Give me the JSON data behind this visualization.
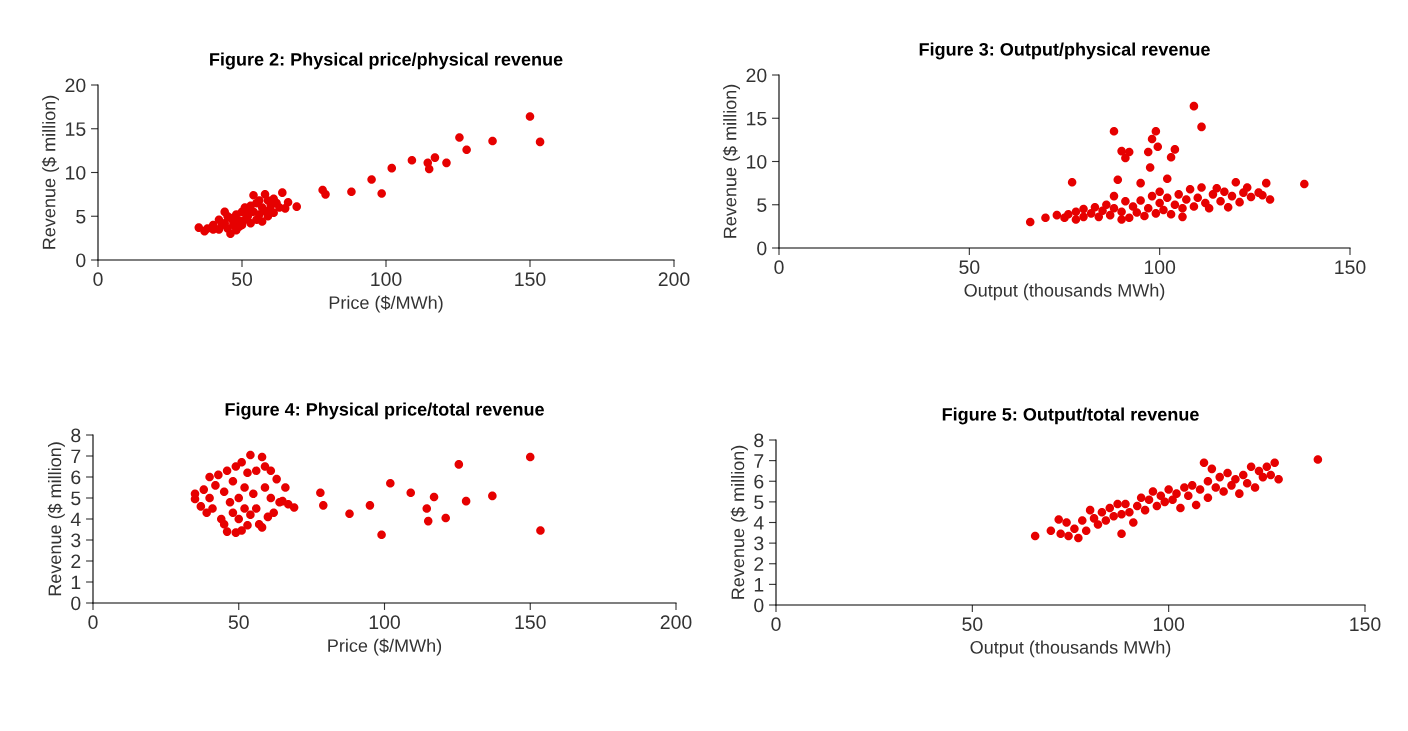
{
  "chart_data": [
    {
      "type": "scatter",
      "title": "Figure 2: Physical price/physical revenue",
      "xlabel": "Price ($/MWh)",
      "ylabel": "Revenue ($ million)",
      "xlim": [
        0,
        200
      ],
      "xticks": [
        0,
        50,
        100,
        150,
        200
      ],
      "ylim": [
        0,
        20
      ],
      "yticks": [
        0,
        5,
        10,
        15,
        20
      ],
      "grid": false,
      "marker": "circle",
      "series": [
        {
          "color": "#e60000",
          "x": [
            35,
            37,
            38,
            40,
            40,
            42,
            42,
            44,
            44,
            45,
            46,
            46,
            47,
            48,
            48,
            49,
            50,
            50,
            51,
            51,
            52,
            53,
            53,
            54,
            54,
            55,
            55,
            56,
            57,
            57,
            58,
            58,
            59,
            59,
            60,
            61,
            61,
            62,
            63,
            64,
            65,
            66,
            69,
            43,
            47,
            49,
            52,
            56,
            60,
            45,
            78,
            79,
            88,
            95,
            98.5,
            102,
            109,
            114.5,
            115,
            117,
            121,
            125.5,
            128,
            137,
            150,
            153.5
          ],
          "values": [
            3.7,
            3.3,
            3.6,
            4.0,
            3.5,
            4.6,
            3.5,
            4.2,
            5.5,
            3.6,
            4.8,
            3.0,
            4.0,
            5.2,
            3.4,
            4.5,
            5.5,
            4.0,
            6.0,
            4.6,
            5.0,
            6.2,
            4.2,
            7.4,
            5.5,
            4.6,
            6.5,
            5.2,
            6.0,
            4.4,
            7.5,
            5.6,
            6.8,
            5.0,
            6.2,
            7.0,
            5.4,
            6.5,
            6.0,
            7.7,
            5.9,
            6.6,
            6.1,
            4.0,
            4.4,
            3.8,
            5.8,
            6.8,
            5.6,
            5.0,
            8.0,
            7.5,
            7.8,
            9.2,
            7.6,
            10.5,
            11.4,
            11.1,
            10.4,
            11.7,
            11.1,
            14.0,
            12.6,
            13.6,
            16.4,
            13.5
          ]
        }
      ]
    },
    {
      "type": "scatter",
      "title": "Figure 3: Output/physical revenue",
      "xlabel": "Output (thousands MWh)",
      "ylabel": "Revenue ($ million)",
      "xlim": [
        0,
        150
      ],
      "xticks": [
        0,
        50,
        100,
        150
      ],
      "ylim": [
        0,
        20
      ],
      "yticks": [
        0,
        5,
        10,
        15,
        20
      ],
      "grid": false,
      "marker": "circle",
      "series": [
        {
          "color": "#e60000",
          "x": [
            66,
            70,
            73,
            75,
            76,
            78,
            78,
            80,
            80,
            82,
            83,
            84,
            85,
            86,
            87,
            88,
            88,
            90,
            90,
            91,
            92,
            93,
            94,
            95,
            96,
            97,
            98,
            99,
            100,
            100,
            101,
            102,
            103,
            104,
            105,
            106,
            106,
            107,
            108,
            109,
            110,
            111,
            112,
            113,
            114,
            115,
            116,
            117,
            118,
            119,
            120,
            121,
            122,
            123,
            124,
            126,
            127,
            129,
            77,
            88,
            89,
            90,
            91,
            92,
            95,
            97,
            97.5,
            98,
            99,
            99.5,
            102,
            103,
            104,
            109,
            111,
            128,
            138
          ],
          "values": [
            3.0,
            3.5,
            3.8,
            3.5,
            3.9,
            3.3,
            4.2,
            3.6,
            4.5,
            4.0,
            4.7,
            3.6,
            4.3,
            5.0,
            3.8,
            4.6,
            6.0,
            3.3,
            4.2,
            5.4,
            3.5,
            4.8,
            4.1,
            5.5,
            3.7,
            4.6,
            6.0,
            4.0,
            5.2,
            6.5,
            4.4,
            5.8,
            3.9,
            5.0,
            6.2,
            4.6,
            3.6,
            5.6,
            6.8,
            4.8,
            5.8,
            7.0,
            5.2,
            4.6,
            6.2,
            6.9,
            5.4,
            6.5,
            4.7,
            6.0,
            7.6,
            5.3,
            6.4,
            7.0,
            5.9,
            6.4,
            6.1,
            5.6,
            7.6,
            13.5,
            7.9,
            11.2,
            10.4,
            11.1,
            7.5,
            11.1,
            9.3,
            12.6,
            13.5,
            11.7,
            8.0,
            10.5,
            11.4,
            16.4,
            14.0,
            7.5,
            7.4
          ]
        }
      ]
    },
    {
      "type": "scatter",
      "title": "Figure 4: Physical price/total revenue",
      "xlabel": "Price ($/MWh)",
      "ylabel": "Revenue ($ million)",
      "xlim": [
        0,
        200
      ],
      "xticks": [
        0,
        50,
        100,
        150,
        200
      ],
      "ylim": [
        0,
        8
      ],
      "yticks": [
        0,
        1,
        2,
        3,
        4,
        5,
        6,
        7,
        8
      ],
      "grid": false,
      "marker": "circle",
      "series": [
        {
          "color": "#e60000",
          "x": [
            35,
            35,
            37,
            38,
            39,
            40,
            40,
            41,
            42,
            43,
            44,
            45,
            45,
            46,
            46,
            47,
            48,
            48,
            49,
            49,
            50,
            50,
            51,
            51,
            52,
            52,
            53,
            53,
            54,
            54,
            55,
            56,
            56,
            57,
            58,
            58,
            59,
            59,
            60,
            61,
            61,
            62,
            63,
            64,
            65,
            66,
            67,
            69,
            78,
            79,
            88,
            95,
            99,
            102,
            109,
            114.5,
            115,
            117,
            121,
            125.5,
            128,
            137,
            150,
            153.5
          ],
          "values": [
            5.2,
            4.95,
            4.6,
            5.4,
            4.3,
            6.0,
            5.0,
            4.5,
            5.6,
            6.1,
            4.0,
            3.75,
            5.3,
            3.4,
            6.3,
            4.8,
            5.8,
            4.3,
            3.35,
            6.5,
            5.0,
            4.0,
            6.7,
            3.45,
            5.5,
            4.5,
            6.2,
            3.7,
            7.05,
            4.2,
            5.2,
            6.3,
            4.5,
            3.75,
            6.95,
            3.6,
            6.5,
            5.5,
            4.1,
            6.3,
            5.0,
            4.3,
            5.9,
            4.8,
            4.85,
            5.5,
            4.7,
            4.55,
            5.25,
            4.65,
            4.25,
            4.65,
            3.25,
            5.7,
            5.25,
            4.5,
            3.9,
            5.05,
            4.05,
            6.6,
            4.85,
            5.1,
            6.95,
            3.45
          ]
        }
      ]
    },
    {
      "type": "scatter",
      "title": "Figure 5: Output/total revenue",
      "xlabel": "Output (thousands MWh)",
      "ylabel": "Revenue ($ million)",
      "xlim": [
        0,
        150
      ],
      "xticks": [
        0,
        50,
        100,
        150
      ],
      "ylim": [
        0,
        8
      ],
      "yticks": [
        0,
        1,
        2,
        3,
        4,
        5,
        6,
        7,
        8
      ],
      "grid": false,
      "marker": "circle",
      "series": [
        {
          "color": "#e60000",
          "x": [
            66,
            70,
            72,
            72.5,
            74,
            74.5,
            76,
            77,
            78,
            79,
            80,
            81,
            82,
            83,
            84,
            85,
            86,
            87,
            88,
            88,
            89,
            90,
            91,
            92,
            93,
            94,
            95,
            96,
            97,
            98,
            99,
            100,
            101,
            102,
            103,
            104,
            105,
            106,
            107,
            108,
            109,
            110,
            110,
            111,
            112,
            113,
            114,
            115,
            116,
            117,
            118,
            119,
            120,
            121,
            122,
            123,
            124,
            125,
            126,
            127,
            128,
            138
          ],
          "values": [
            3.35,
            3.6,
            4.15,
            3.45,
            4.0,
            3.35,
            3.7,
            3.25,
            4.1,
            3.6,
            4.6,
            4.2,
            3.9,
            4.5,
            4.1,
            4.7,
            4.3,
            4.9,
            3.45,
            4.4,
            4.9,
            4.5,
            4.0,
            4.8,
            5.2,
            4.6,
            5.1,
            5.5,
            4.8,
            5.3,
            5.0,
            5.6,
            5.1,
            5.4,
            4.7,
            5.7,
            5.3,
            5.8,
            4.85,
            5.6,
            6.9,
            5.2,
            6.0,
            6.6,
            5.7,
            6.2,
            5.5,
            6.4,
            5.8,
            6.1,
            5.4,
            6.3,
            5.9,
            6.7,
            5.7,
            6.5,
            6.2,
            6.7,
            6.3,
            6.9,
            6.1,
            7.05
          ]
        }
      ]
    }
  ]
}
